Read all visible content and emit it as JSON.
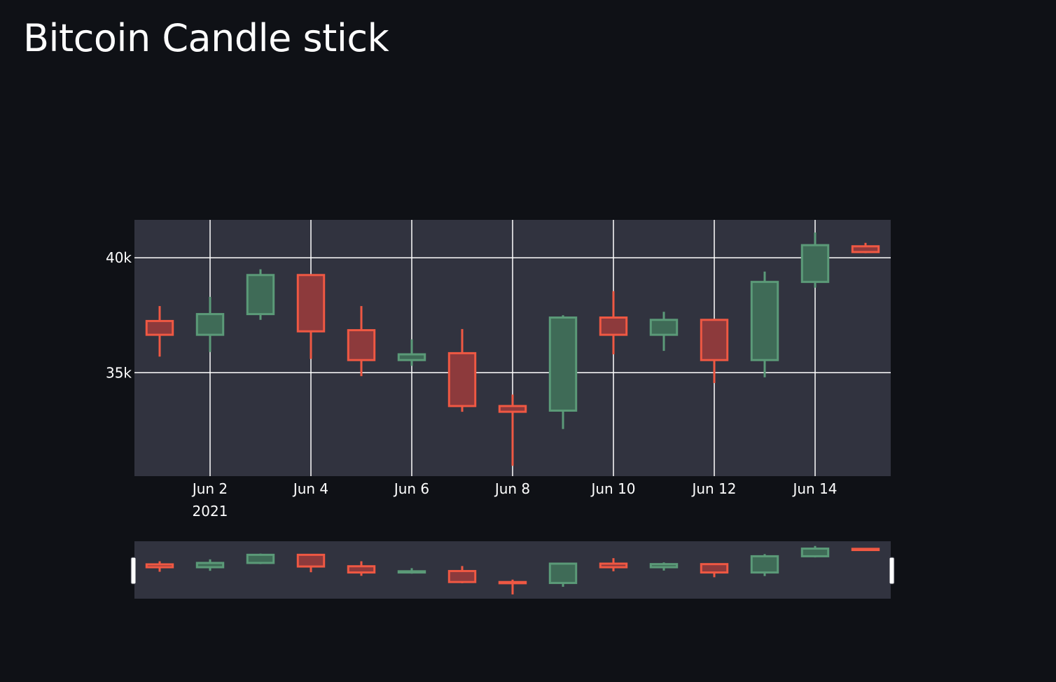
{
  "page": {
    "title": "Bitcoin Candle stick"
  },
  "theme": {
    "background": "#0f1116",
    "plot_bg": "#31333f",
    "grid": "#ffffff",
    "increasing": "#5b9a78",
    "increasing_fill": "#3f6b57",
    "decreasing": "#ef5843",
    "decreasing_fill": "#8d3a3c"
  },
  "chart_data": {
    "type": "candlestick",
    "title": "Bitcoin Candle stick",
    "x": [
      "2021-06-01",
      "2021-06-02",
      "2021-06-03",
      "2021-06-04",
      "2021-06-05",
      "2021-06-06",
      "2021-06-07",
      "2021-06-08",
      "2021-06-09",
      "2021-06-10",
      "2021-06-11",
      "2021-06-12",
      "2021-06-13",
      "2021-06-14",
      "2021-06-15"
    ],
    "open": [
      37250,
      36650,
      37550,
      39250,
      36850,
      35550,
      35850,
      33550,
      33350,
      37400,
      36650,
      37300,
      35550,
      38950,
      40500
    ],
    "high": [
      37900,
      38300,
      39500,
      39250,
      37900,
      36450,
      36900,
      34050,
      37500,
      38550,
      37650,
      37350,
      39400,
      41100,
      40650
    ],
    "low": [
      35700,
      35900,
      37300,
      35600,
      34850,
      35300,
      33300,
      30950,
      32550,
      35800,
      35950,
      34550,
      34800,
      38700,
      40200
    ],
    "close": [
      36650,
      37550,
      39250,
      36800,
      35550,
      35800,
      33550,
      33300,
      37400,
      36650,
      37300,
      35550,
      38950,
      40550,
      40250
    ],
    "x_ticks": [
      "Jun 2",
      "Jun 4",
      "Jun 6",
      "Jun 8",
      "Jun 10",
      "Jun 12",
      "Jun 14"
    ],
    "x_year_label": "2021",
    "y_ticks": [
      "35k",
      "40k"
    ],
    "ylim": [
      30500,
      41650
    ],
    "xlim": [
      "2021-05-31T12:00",
      "2021-06-15T12:00"
    ],
    "rangeslider": true,
    "grid": true
  }
}
